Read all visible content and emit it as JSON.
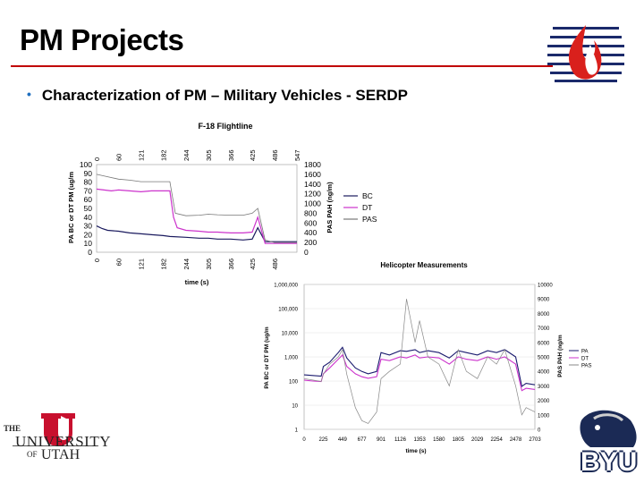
{
  "slide": {
    "title": "PM Projects",
    "bullet": "Characterization of PM – Military Vehicles - SERDP",
    "accent": "#c00000",
    "bullet_color": "#1f6fbf"
  },
  "logos": {
    "top_right": "flame-logo-icon",
    "utah_the": "THE",
    "utah_university": "UNIVERSITY",
    "utah_of": "OF",
    "utah_utah": "UTAH",
    "byu": "BYU"
  },
  "chart_data": [
    {
      "type": "line",
      "title": "F-18 Flightline",
      "xlabel": "time (s)",
      "ylabel": "PA BC or DT PM (ug/m",
      "y2label": "PAS PAH (ng/m)",
      "x_ticks_top": [
        "0",
        "60",
        "121",
        "182",
        "244",
        "305",
        "366",
        "425",
        "486",
        "547"
      ],
      "x_ticks_bottom": [
        "0",
        "60",
        "121",
        "182",
        "244",
        "305",
        "366",
        "425",
        "486"
      ],
      "xlim": [
        0,
        547
      ],
      "ylim": [
        0,
        100
      ],
      "y_ticks": [
        "100",
        "90",
        "80",
        "70",
        "60",
        "50",
        "40",
        "30",
        "20",
        "10",
        "0"
      ],
      "y2lim": [
        0,
        1800
      ],
      "y2_ticks": [
        "1800",
        "1600",
        "1400",
        "1200",
        "1000",
        "800",
        "600",
        "400",
        "200",
        "0"
      ],
      "legend": "right",
      "series": [
        {
          "name": "BC",
          "color": "#1a1a5e",
          "axis": "left",
          "x": [
            0,
            15,
            30,
            60,
            90,
            121,
            150,
            182,
            200,
            244,
            280,
            305,
            330,
            366,
            400,
            425,
            440,
            460,
            486,
            547
          ],
          "y": [
            30,
            27,
            25,
            24,
            22,
            21,
            20,
            19,
            18,
            17,
            16,
            16,
            15,
            15,
            14,
            15,
            28,
            12,
            12,
            12
          ]
        },
        {
          "name": "DT",
          "color": "#cc33cc",
          "axis": "left",
          "x": [
            0,
            20,
            40,
            60,
            90,
            121,
            150,
            182,
            200,
            210,
            220,
            244,
            280,
            305,
            330,
            366,
            400,
            425,
            440,
            460,
            486,
            547
          ],
          "y": [
            72,
            71,
            70,
            71,
            70,
            69,
            70,
            70,
            70,
            40,
            28,
            25,
            24,
            23,
            23,
            22,
            22,
            23,
            40,
            10,
            10,
            10
          ]
        },
        {
          "name": "PAS",
          "color": "#777777",
          "axis": "right",
          "x": [
            0,
            30,
            60,
            90,
            121,
            150,
            182,
            200,
            215,
            244,
            280,
            305,
            330,
            366,
            400,
            425,
            440,
            460,
            486,
            547
          ],
          "y": [
            1600,
            1550,
            1500,
            1480,
            1450,
            1450,
            1450,
            1450,
            800,
            750,
            760,
            780,
            770,
            760,
            760,
            800,
            900,
            250,
            200,
            200
          ]
        }
      ]
    },
    {
      "type": "line",
      "title": "Helicopter Measurements",
      "xlabel": "time (s)",
      "ylabel": "PA BC or DT PM (ug/m",
      "y2label": "PAS PAH (ng/m",
      "x_ticks": [
        "0",
        "225",
        "449",
        "677",
        "901",
        "1126",
        "1353",
        "1580",
        "1805",
        "2029",
        "2254",
        "2478",
        "2703"
      ],
      "xlim": [
        0,
        2703
      ],
      "yscale": "log",
      "ylim": [
        1,
        1000000
      ],
      "y_ticks": [
        "1,000,000",
        "100,000",
        "10,000",
        "1,000",
        "100",
        "10",
        "1"
      ],
      "y2lim": [
        0,
        10000
      ],
      "y2_ticks": [
        "10000",
        "9000",
        "8000",
        "7000",
        "6000",
        "5000",
        "4000",
        "3000",
        "2000",
        "1000",
        "0"
      ],
      "legend": "right",
      "series": [
        {
          "name": "PA",
          "color": "#1a1a6e",
          "axis": "left",
          "x": [
            0,
            100,
            200,
            225,
            300,
            400,
            449,
            500,
            600,
            677,
            750,
            850,
            901,
            1000,
            1126,
            1200,
            1300,
            1353,
            1450,
            1580,
            1700,
            1805,
            1900,
            2029,
            2150,
            2254,
            2350,
            2478,
            2550,
            2600,
            2703
          ],
          "y": [
            180,
            170,
            160,
            400,
            600,
            1500,
            2500,
            900,
            350,
            250,
            200,
            250,
            1500,
            1200,
            1800,
            1700,
            2000,
            1500,
            1800,
            1500,
            900,
            1800,
            1500,
            1200,
            1800,
            1500,
            2000,
            1000,
            60,
            80,
            70
          ]
        },
        {
          "name": "DT",
          "color": "#cc33cc",
          "axis": "left",
          "x": [
            0,
            100,
            200,
            225,
            300,
            400,
            449,
            500,
            600,
            677,
            750,
            850,
            901,
            1000,
            1126,
            1200,
            1300,
            1353,
            1450,
            1580,
            1700,
            1805,
            1900,
            2029,
            2150,
            2254,
            2350,
            2478,
            2550,
            2600,
            2703
          ],
          "y": [
            110,
            100,
            95,
            200,
            350,
            800,
            1200,
            400,
            200,
            150,
            130,
            150,
            800,
            700,
            1000,
            900,
            1200,
            900,
            1000,
            900,
            500,
            1000,
            800,
            700,
            1000,
            800,
            1000,
            500,
            40,
            50,
            45
          ]
        },
        {
          "name": "PAS",
          "color": "#888888",
          "axis": "right",
          "x": [
            0,
            100,
            200,
            225,
            300,
            400,
            449,
            500,
            600,
            677,
            750,
            850,
            901,
            1000,
            1126,
            1200,
            1300,
            1353,
            1450,
            1580,
            1700,
            1805,
            1900,
            2029,
            2150,
            2254,
            2350,
            2478,
            2550,
            2600,
            2703
          ],
          "y": [
            3500,
            3400,
            3300,
            3800,
            4500,
            5000,
            5500,
            3800,
            1500,
            600,
            400,
            1200,
            3500,
            4000,
            4500,
            9000,
            6000,
            7500,
            5000,
            4500,
            3000,
            5500,
            4000,
            3500,
            5000,
            4500,
            5500,
            3000,
            1000,
            1500,
            1200
          ]
        }
      ]
    }
  ]
}
